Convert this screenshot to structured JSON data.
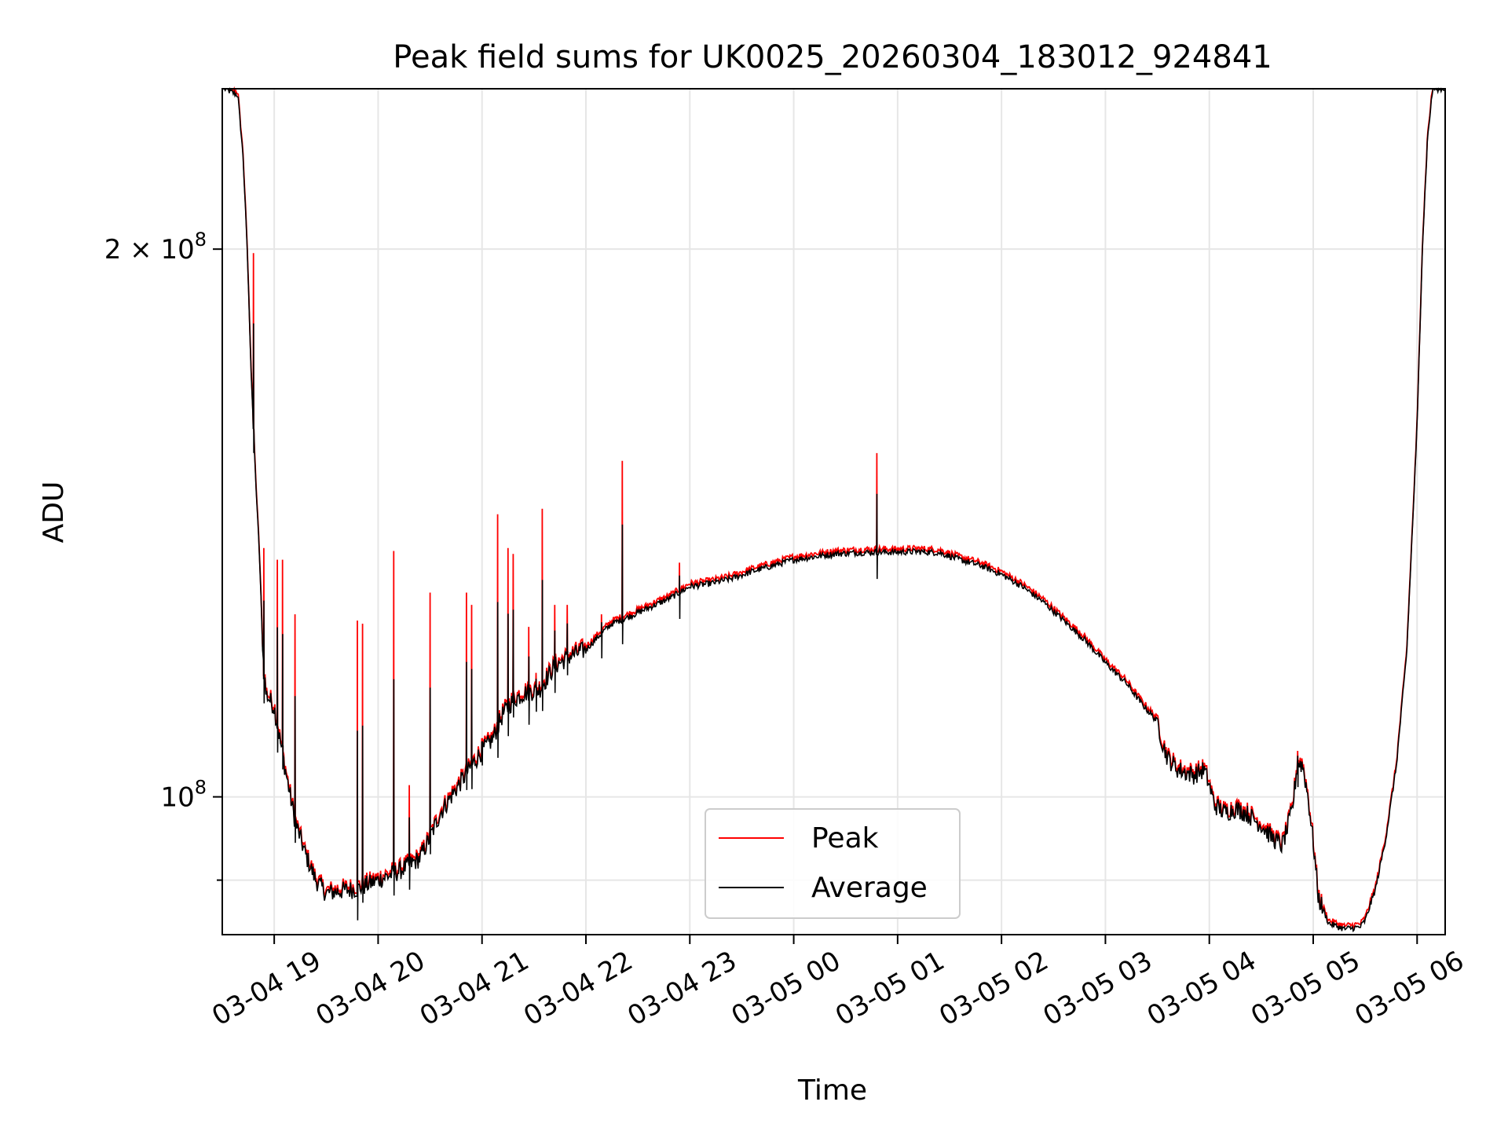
{
  "chart_data": {
    "type": "line",
    "title": "Peak field sums for UK0025_20260304_183012_924841",
    "xlabel": "Time",
    "ylabel": "ADU",
    "yscale": "log",
    "ylim": [
      84000000,
      245000000
    ],
    "xlim": [
      -0.5,
      11.27
    ],
    "grid": true,
    "legend_position": "lower-center",
    "x_ticks": [
      {
        "value": 0,
        "label": "03-04 19"
      },
      {
        "value": 1,
        "label": "03-04 20"
      },
      {
        "value": 2,
        "label": "03-04 21"
      },
      {
        "value": 3,
        "label": "03-04 22"
      },
      {
        "value": 4,
        "label": "03-04 23"
      },
      {
        "value": 5,
        "label": "03-05 00"
      },
      {
        "value": 6,
        "label": "03-05 01"
      },
      {
        "value": 7,
        "label": "03-05 02"
      },
      {
        "value": 8,
        "label": "03-05 03"
      },
      {
        "value": 9,
        "label": "03-05 04"
      },
      {
        "value": 10,
        "label": "03-05 05"
      },
      {
        "value": 11,
        "label": "03-05 06"
      }
    ],
    "y_ticks": [
      {
        "value": 200000000,
        "base": "2 × 10",
        "exp": "8"
      },
      {
        "value": 100000000,
        "base": "10",
        "exp": "8"
      }
    ],
    "x_units": "hours after 03-04 19:00",
    "series": [
      {
        "name": "Peak",
        "color": "#ff0000"
      },
      {
        "name": "Average",
        "color": "#000000"
      }
    ],
    "average_points": [
      [
        -0.48,
        245000000
      ],
      [
        -0.35,
        243000000
      ],
      [
        -0.3,
        225000000
      ],
      [
        -0.26,
        200000000
      ],
      [
        -0.22,
        170000000
      ],
      [
        -0.18,
        150000000
      ],
      [
        -0.14,
        135000000
      ],
      [
        -0.11,
        120000000
      ],
      [
        -0.08,
        114000000
      ],
      [
        0.0,
        112000000
      ],
      [
        0.1,
        104000000
      ],
      [
        0.2,
        97000000
      ],
      [
        0.3,
        93000000
      ],
      [
        0.4,
        90000000
      ],
      [
        0.5,
        88500000
      ],
      [
        0.65,
        88800000
      ],
      [
        0.8,
        89000000
      ],
      [
        1.0,
        90000000
      ],
      [
        1.2,
        91000000
      ],
      [
        1.4,
        92500000
      ],
      [
        1.5,
        95000000
      ],
      [
        1.6,
        98000000
      ],
      [
        1.7,
        100000000
      ],
      [
        1.8,
        102000000
      ],
      [
        1.9,
        104000000
      ],
      [
        2.0,
        106000000
      ],
      [
        2.1,
        107500000
      ],
      [
        2.2,
        111000000
      ],
      [
        2.3,
        113000000
      ],
      [
        2.4,
        114000000
      ],
      [
        2.55,
        114500000
      ],
      [
        2.7,
        118000000
      ],
      [
        2.85,
        119500000
      ],
      [
        3.0,
        120500000
      ],
      [
        3.15,
        123000000
      ],
      [
        3.25,
        124500000
      ],
      [
        3.4,
        125500000
      ],
      [
        3.6,
        127000000
      ],
      [
        3.8,
        128500000
      ],
      [
        4.0,
        130500000
      ],
      [
        4.2,
        131000000
      ],
      [
        4.4,
        131800000
      ],
      [
        4.6,
        133000000
      ],
      [
        4.8,
        134000000
      ],
      [
        5.0,
        135000000
      ],
      [
        5.2,
        135500000
      ],
      [
        5.4,
        136000000
      ],
      [
        5.6,
        136200000
      ],
      [
        5.8,
        136300000
      ],
      [
        6.0,
        136300000
      ],
      [
        6.2,
        136400000
      ],
      [
        6.4,
        136200000
      ],
      [
        6.6,
        135000000
      ],
      [
        6.8,
        134000000
      ],
      [
        7.0,
        132500000
      ],
      [
        7.2,
        130500000
      ],
      [
        7.4,
        128000000
      ],
      [
        7.6,
        125000000
      ],
      [
        7.8,
        122000000
      ],
      [
        8.0,
        118500000
      ],
      [
        8.2,
        115500000
      ],
      [
        8.35,
        112500000
      ],
      [
        8.5,
        110000000
      ],
      [
        8.55,
        107000000
      ],
      [
        8.6,
        105000000
      ],
      [
        8.7,
        103500000
      ],
      [
        8.85,
        102800000
      ],
      [
        8.95,
        103500000
      ],
      [
        9.0,
        101500000
      ],
      [
        9.05,
        99000000
      ],
      [
        9.15,
        98000000
      ],
      [
        9.25,
        98500000
      ],
      [
        9.35,
        98000000
      ],
      [
        9.5,
        96500000
      ],
      [
        9.6,
        95000000
      ],
      [
        9.7,
        94000000
      ],
      [
        9.75,
        96000000
      ],
      [
        9.8,
        98500000
      ],
      [
        9.85,
        104500000
      ],
      [
        9.9,
        104000000
      ],
      [
        9.95,
        100000000
      ],
      [
        10.0,
        94500000
      ],
      [
        10.05,
        88000000
      ],
      [
        10.15,
        85200000
      ],
      [
        10.3,
        84600000
      ],
      [
        10.45,
        84800000
      ],
      [
        10.5,
        85500000
      ],
      [
        10.6,
        89000000
      ],
      [
        10.7,
        95000000
      ],
      [
        10.8,
        104000000
      ],
      [
        10.9,
        120000000
      ],
      [
        11.0,
        160000000
      ],
      [
        11.05,
        200000000
      ],
      [
        11.1,
        230000000
      ],
      [
        11.15,
        245000000
      ],
      [
        11.27,
        245000000
      ]
    ],
    "peak_spikes": [
      [
        -0.2,
        199000000
      ],
      [
        -0.1,
        137000000
      ],
      [
        0.03,
        135000000
      ],
      [
        0.08,
        135000000
      ],
      [
        0.2,
        126000000
      ],
      [
        0.8,
        125000000
      ],
      [
        0.85,
        124500000
      ],
      [
        1.15,
        136500000
      ],
      [
        1.3,
        101500000
      ],
      [
        1.5,
        129500000
      ],
      [
        1.85,
        129500000
      ],
      [
        1.9,
        127500000
      ],
      [
        2.0,
        107000000
      ],
      [
        2.15,
        143000000
      ],
      [
        2.25,
        137000000
      ],
      [
        2.3,
        136000000
      ],
      [
        2.45,
        124000000
      ],
      [
        2.52,
        117000000
      ],
      [
        2.58,
        144000000
      ],
      [
        2.7,
        127500000
      ],
      [
        2.82,
        127500000
      ],
      [
        3.15,
        126000000
      ],
      [
        3.35,
        153000000
      ],
      [
        3.9,
        134500000
      ],
      [
        5.8,
        154500000
      ],
      [
        9.85,
        106000000
      ]
    ]
  }
}
